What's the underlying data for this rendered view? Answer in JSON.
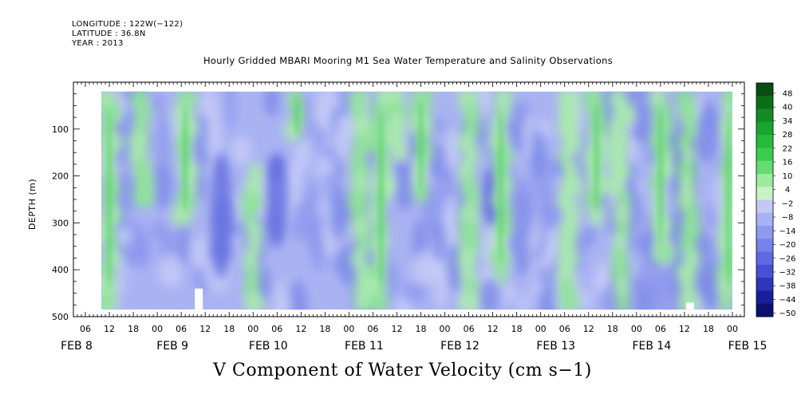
{
  "header": {
    "longitude": "LONGITUDE : 122W(−122)",
    "latitude": "LATITUDE : 36.8N",
    "year": "YEAR : 2013"
  },
  "chart_data": {
    "type": "heatmap",
    "title": "Hourly Gridded MBARI Mooring M1 Sea Water Temperature and Salinity Observations",
    "xlabel": "V Component of Water Velocity (cm s−1)",
    "ylabel": "DEPTH (m)",
    "ylim": [
      500,
      0
    ],
    "y_ticks": [
      100,
      200,
      300,
      400,
      500
    ],
    "data_depth_range": [
      20,
      485
    ],
    "time_range": [
      "FEB 8 03:00",
      "FEB 15 03:00"
    ],
    "data_time_range": [
      "FEB 8 10:00",
      "FEB 15 00:00"
    ],
    "hour_tick_labels": [
      "06",
      "12",
      "18",
      "00",
      "06",
      "12",
      "18",
      "00",
      "06",
      "12",
      "18",
      "00",
      "06",
      "12",
      "18",
      "00",
      "06",
      "12",
      "18",
      "00",
      "06",
      "12",
      "18",
      "00",
      "06",
      "12",
      "18",
      "00",
      "06",
      "12",
      "18",
      "00"
    ],
    "day_labels": [
      "FEB  8",
      "FEB  9",
      "FEB 10",
      "FEB 11",
      "FEB 12",
      "FEB 13",
      "FEB 14",
      "FEB 15"
    ],
    "colorbar": {
      "levels": [
        "48",
        "40",
        "34",
        "28",
        "22",
        "16",
        "10",
        "4",
        "−2",
        "−8",
        "−14",
        "−20",
        "−26",
        "−32",
        "−38",
        "−44",
        "−50"
      ],
      "colors": [
        "#0a4d12",
        "#0d6e1a",
        "#138c24",
        "#1aa52e",
        "#26bb3a",
        "#3ccd4d",
        "#63dd6f",
        "#9aeb9d",
        "#c7f3c4",
        "#c4c8f6",
        "#a9b2f3",
        "#8d9bef",
        "#7582ea",
        "#5e69e2",
        "#4650d4",
        "#2e36bb",
        "#1a1f99",
        "#0d1070"
      ]
    },
    "green_bands": [
      {
        "time": "FEB 8 12",
        "depth_from": 20,
        "depth_to": 485
      },
      {
        "time": "FEB 8 20",
        "depth_from": 20,
        "depth_to": 260
      },
      {
        "time": "FEB 9 07",
        "depth_from": 20,
        "depth_to": 300
      },
      {
        "time": "FEB 10 00",
        "depth_from": 180,
        "depth_to": 485
      },
      {
        "time": "FEB 10 11",
        "depth_from": 20,
        "depth_to": 120
      },
      {
        "time": "FEB 11 03",
        "depth_from": 20,
        "depth_to": 485
      },
      {
        "time": "FEB 11 08",
        "depth_from": 20,
        "depth_to": 485
      },
      {
        "time": "FEB 11 12",
        "depth_from": 20,
        "depth_to": 160
      },
      {
        "time": "FEB 11 18",
        "depth_from": 20,
        "depth_to": 250
      },
      {
        "time": "FEB 12 06",
        "depth_from": 20,
        "depth_to": 485
      },
      {
        "time": "FEB 12 14",
        "depth_from": 20,
        "depth_to": 420
      },
      {
        "time": "FEB 13 07",
        "depth_from": 20,
        "depth_to": 485
      },
      {
        "time": "FEB 13 14",
        "depth_from": 20,
        "depth_to": 300
      },
      {
        "time": "FEB 13 20",
        "depth_from": 20,
        "depth_to": 485
      },
      {
        "time": "FEB 14 06",
        "depth_from": 20,
        "depth_to": 380
      },
      {
        "time": "FEB 14 13",
        "depth_from": 20,
        "depth_to": 485
      },
      {
        "time": "FEB 14 23",
        "depth_from": 20,
        "depth_to": 485
      }
    ],
    "dark_blue_bands": [
      {
        "time": "FEB 9 16",
        "depth_from": 150,
        "depth_to": 420
      },
      {
        "time": "FEB 10 06",
        "depth_from": 150,
        "depth_to": 350
      },
      {
        "time": "FEB 12 12",
        "depth_from": 180,
        "depth_to": 300
      },
      {
        "time": "FEB 14 12",
        "depth_from": 100,
        "depth_to": 300
      }
    ],
    "missing": [
      {
        "time": "FEB 9 10",
        "depth_from": 440,
        "depth_to": 485
      },
      {
        "time": "FEB 14 13",
        "depth_from": 470,
        "depth_to": 485
      }
    ]
  }
}
